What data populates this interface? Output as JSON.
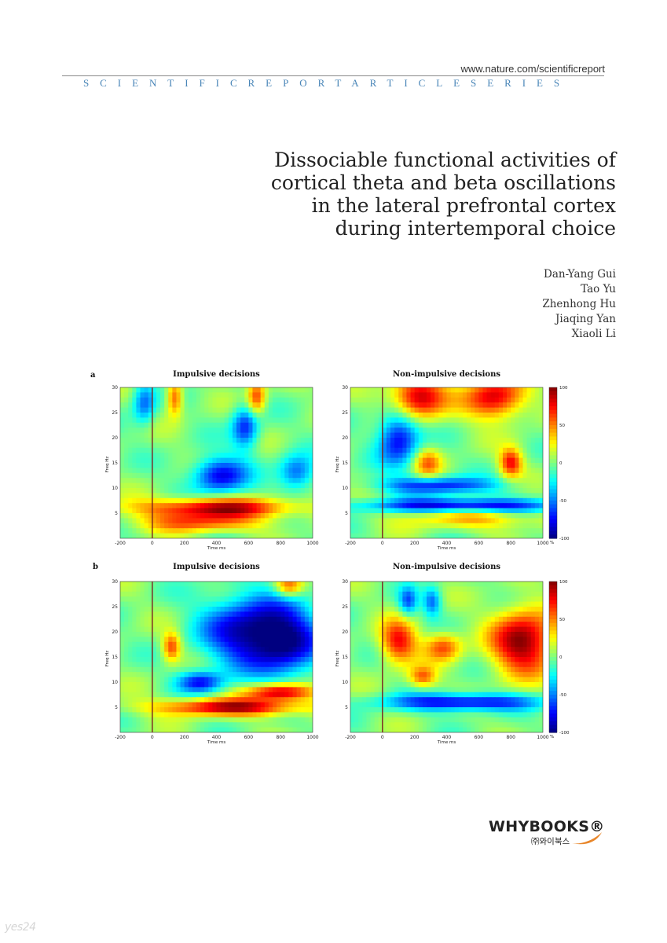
{
  "header": {
    "url": "www.nature.com/scientificreport",
    "series": "SCIENTIFICREPORTARTICLESERIES"
  },
  "title_lines": [
    "Dissociable functional activities of",
    "cortical theta and beta oscillations",
    "in the lateral prefrontal cortex",
    "during intertemporal choice"
  ],
  "authors": [
    "Dan-Yang Gui",
    "Tao Yu",
    "Zhenhong Hu",
    "Jiaqing Yan",
    "Xiaoli Li"
  ],
  "publisher": {
    "name": "WHYBOOKS®",
    "subname": "㈜와이북스"
  },
  "watermark": "yes24",
  "chart_data": [
    {
      "type": "heatmap",
      "panel": "a",
      "title": "Impulsive decisions",
      "xlabel": "Time ms",
      "ylabel": "Freq Hz",
      "xlim": [
        -200,
        1000
      ],
      "ylim": [
        0,
        30
      ],
      "xticks": [
        "-200",
        "0",
        "200",
        "400",
        "600",
        "800",
        "1000"
      ],
      "yticks": [
        "5",
        "10",
        "15",
        "20",
        "25",
        "30"
      ],
      "event_marker_ms": 0,
      "features": [
        {
          "t": 400,
          "f": 6,
          "v": 90,
          "wt": 340,
          "wf": 1.4
        },
        {
          "t": 300,
          "f": 3,
          "v": 55,
          "wt": 260,
          "wf": 1.3
        },
        {
          "t": 420,
          "f": 12.5,
          "v": -80,
          "wt": 120,
          "wf": 2.5
        },
        {
          "t": -50,
          "f": 27,
          "v": -55,
          "wt": 50,
          "wf": 3
        },
        {
          "t": 580,
          "f": 22,
          "v": -70,
          "wt": 60,
          "wf": 3
        },
        {
          "t": 140,
          "f": 28,
          "v": 65,
          "wt": 35,
          "wf": 2.5
        },
        {
          "t": 650,
          "f": 28,
          "v": 65,
          "wt": 40,
          "wf": 2.5
        },
        {
          "t": 900,
          "f": 13,
          "v": -60,
          "wt": 80,
          "wf": 2.5
        }
      ]
    },
    {
      "type": "heatmap",
      "panel": "a",
      "title": "Non-impulsive decisions",
      "xlabel": "Time ms",
      "ylabel": "Freq Hz",
      "xlim": [
        -200,
        1000
      ],
      "ylim": [
        0,
        30
      ],
      "xticks": [
        "-200",
        "0",
        "200",
        "400",
        "600",
        "800",
        "1000"
      ],
      "yticks": [
        "5",
        "10",
        "15",
        "20",
        "25",
        "30"
      ],
      "colorbar": {
        "ticks": [
          "100",
          "50",
          "0",
          "-50",
          "-100"
        ],
        "unit": "%"
      },
      "event_marker_ms": 0,
      "features": [
        {
          "t": 220,
          "f": 28,
          "v": 95,
          "wt": 120,
          "wf": 3
        },
        {
          "t": 700,
          "f": 28,
          "v": 85,
          "wt": 130,
          "wf": 3
        },
        {
          "t": 100,
          "f": 20,
          "v": -80,
          "wt": 90,
          "wf": 4
        },
        {
          "t": 500,
          "f": 6.5,
          "v": -90,
          "wt": 420,
          "wf": 1
        },
        {
          "t": 350,
          "f": 10.5,
          "v": -70,
          "wt": 250,
          "wf": 1.2
        },
        {
          "t": 800,
          "f": 15,
          "v": 75,
          "wt": 50,
          "wf": 2
        },
        {
          "t": 560,
          "f": 4,
          "v": 40,
          "wt": 300,
          "wf": 1.5
        },
        {
          "t": 280,
          "f": 15,
          "v": 50,
          "wt": 60,
          "wf": 2
        }
      ]
    },
    {
      "type": "heatmap",
      "panel": "b",
      "title": "Impulsive decisions",
      "xlabel": "Time ms",
      "ylabel": "Freq Hz",
      "xlim": [
        -200,
        1000
      ],
      "ylim": [
        0,
        30
      ],
      "xticks": [
        "-200",
        "0",
        "200",
        "400",
        "600",
        "800",
        "1000"
      ],
      "yticks": [
        "5",
        "10",
        "15",
        "20",
        "25",
        "30"
      ],
      "event_marker_ms": 0,
      "features": [
        {
          "t": 500,
          "f": 5,
          "v": 90,
          "wt": 330,
          "wf": 1.2
        },
        {
          "t": 800,
          "f": 8,
          "v": 95,
          "wt": 150,
          "wf": 1.2
        },
        {
          "t": 600,
          "f": 20,
          "v": -90,
          "wt": 200,
          "wf": 5
        },
        {
          "t": 850,
          "f": 18,
          "v": -70,
          "wt": 150,
          "wf": 5
        },
        {
          "t": 300,
          "f": 10,
          "v": -70,
          "wt": 100,
          "wf": 1.5
        },
        {
          "t": 120,
          "f": 17,
          "v": 65,
          "wt": 40,
          "wf": 2
        },
        {
          "t": 850,
          "f": 29,
          "v": 60,
          "wt": 60,
          "wf": 1.5
        }
      ]
    },
    {
      "type": "heatmap",
      "panel": "b",
      "title": "Non-impulsive decisions",
      "xlabel": "Time ms",
      "ylabel": "Freq Hz",
      "xlim": [
        -200,
        1000
      ],
      "ylim": [
        0,
        30
      ],
      "xticks": [
        "-200",
        "0",
        "200",
        "400",
        "600",
        "800",
        "1000"
      ],
      "yticks": [
        "5",
        "10",
        "15",
        "20",
        "25",
        "30"
      ],
      "colorbar": {
        "ticks": [
          "100",
          "50",
          "0",
          "-50",
          "-100"
        ],
        "unit": "%"
      },
      "event_marker_ms": 0,
      "features": [
        {
          "t": 880,
          "f": 18,
          "v": 100,
          "wt": 140,
          "wf": 4.5
        },
        {
          "t": 100,
          "f": 18,
          "v": 75,
          "wt": 80,
          "wf": 3
        },
        {
          "t": 380,
          "f": 17,
          "v": 60,
          "wt": 80,
          "wf": 2
        },
        {
          "t": 500,
          "f": 6,
          "v": -85,
          "wt": 330,
          "wf": 1.2
        },
        {
          "t": 160,
          "f": 26,
          "v": -55,
          "wt": 40,
          "wf": 2
        },
        {
          "t": 310,
          "f": 26,
          "v": -55,
          "wt": 40,
          "wf": 2
        },
        {
          "t": 250,
          "f": 11,
          "v": 55,
          "wt": 60,
          "wf": 1.5
        }
      ]
    }
  ],
  "colors": {
    "series": "#4a86b8",
    "event_marker": "#7a1f1f",
    "logo_swoosh": "#e8862a"
  }
}
